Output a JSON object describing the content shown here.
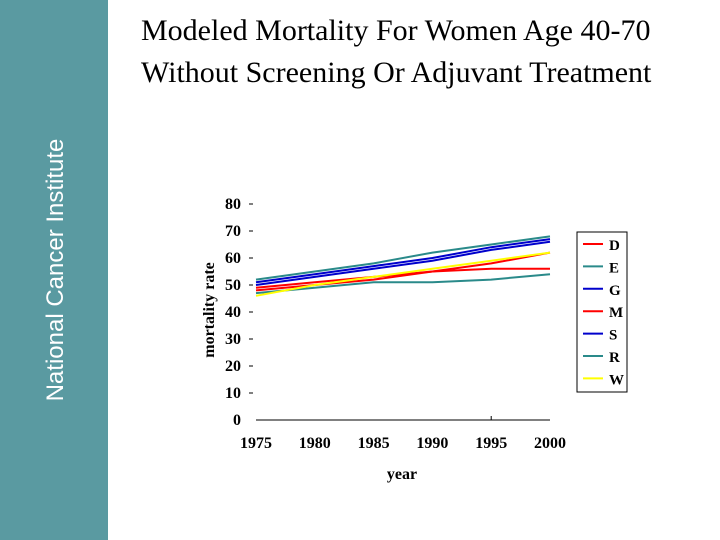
{
  "sidebar": {
    "brand": "National Cancer Institute"
  },
  "slide": {
    "title_lines": [
      "Modeled Mortality For Women Age 40-70",
      "Without Screening Or Adjuvant Treatment"
    ]
  },
  "colors": {
    "sidebar_bg": "#5a9aa1",
    "D": "#ff0000",
    "E": "#2a8a8a",
    "G": "#0000cc",
    "M": "#ff0000",
    "S": "#0000cc",
    "R": "#2a8a8a",
    "W": "#ffff00"
  },
  "chart_data": {
    "type": "line",
    "title": "",
    "xlabel": "year",
    "ylabel": "mortality rate",
    "xlim": [
      1975,
      2000
    ],
    "ylim": [
      0,
      80
    ],
    "x_ticks": [
      1975,
      1980,
      1985,
      1990,
      1995,
      2000
    ],
    "y_ticks": [
      0,
      10,
      20,
      30,
      40,
      50,
      60,
      70,
      80
    ],
    "legend_position": "right",
    "series": [
      {
        "name": "D",
        "color": "#ff0000",
        "x": [
          1975,
          1980,
          1985,
          1990,
          1995,
          2000
        ],
        "values": [
          49,
          51,
          53,
          55,
          56,
          56
        ]
      },
      {
        "name": "E",
        "color": "#2a8a8a",
        "x": [
          1975,
          1980,
          1985,
          1990,
          1995,
          2000
        ],
        "values": [
          52,
          55,
          58,
          62,
          65,
          68
        ]
      },
      {
        "name": "G",
        "color": "#0000cc",
        "x": [
          1975,
          1980,
          1985,
          1990,
          1995,
          2000
        ],
        "values": [
          50,
          53,
          56,
          59,
          63,
          66
        ]
      },
      {
        "name": "M",
        "color": "#ff0000",
        "x": [
          1975,
          1980,
          1985,
          1990,
          1995,
          2000
        ],
        "values": [
          48,
          50,
          52,
          55,
          58,
          62
        ]
      },
      {
        "name": "S",
        "color": "#0000cc",
        "x": [
          1975,
          1980,
          1985,
          1990,
          1995,
          2000
        ],
        "values": [
          51,
          54,
          57,
          60,
          64,
          67
        ]
      },
      {
        "name": "R",
        "color": "#2a8a8a",
        "x": [
          1975,
          1980,
          1985,
          1990,
          1995,
          2000
        ],
        "values": [
          47,
          49,
          51,
          51,
          52,
          54
        ]
      },
      {
        "name": "W",
        "color": "#ffff00",
        "x": [
          1975,
          1980,
          1985,
          1990,
          1995,
          2000
        ],
        "values": [
          46,
          50,
          53,
          56,
          59,
          62
        ]
      }
    ]
  }
}
